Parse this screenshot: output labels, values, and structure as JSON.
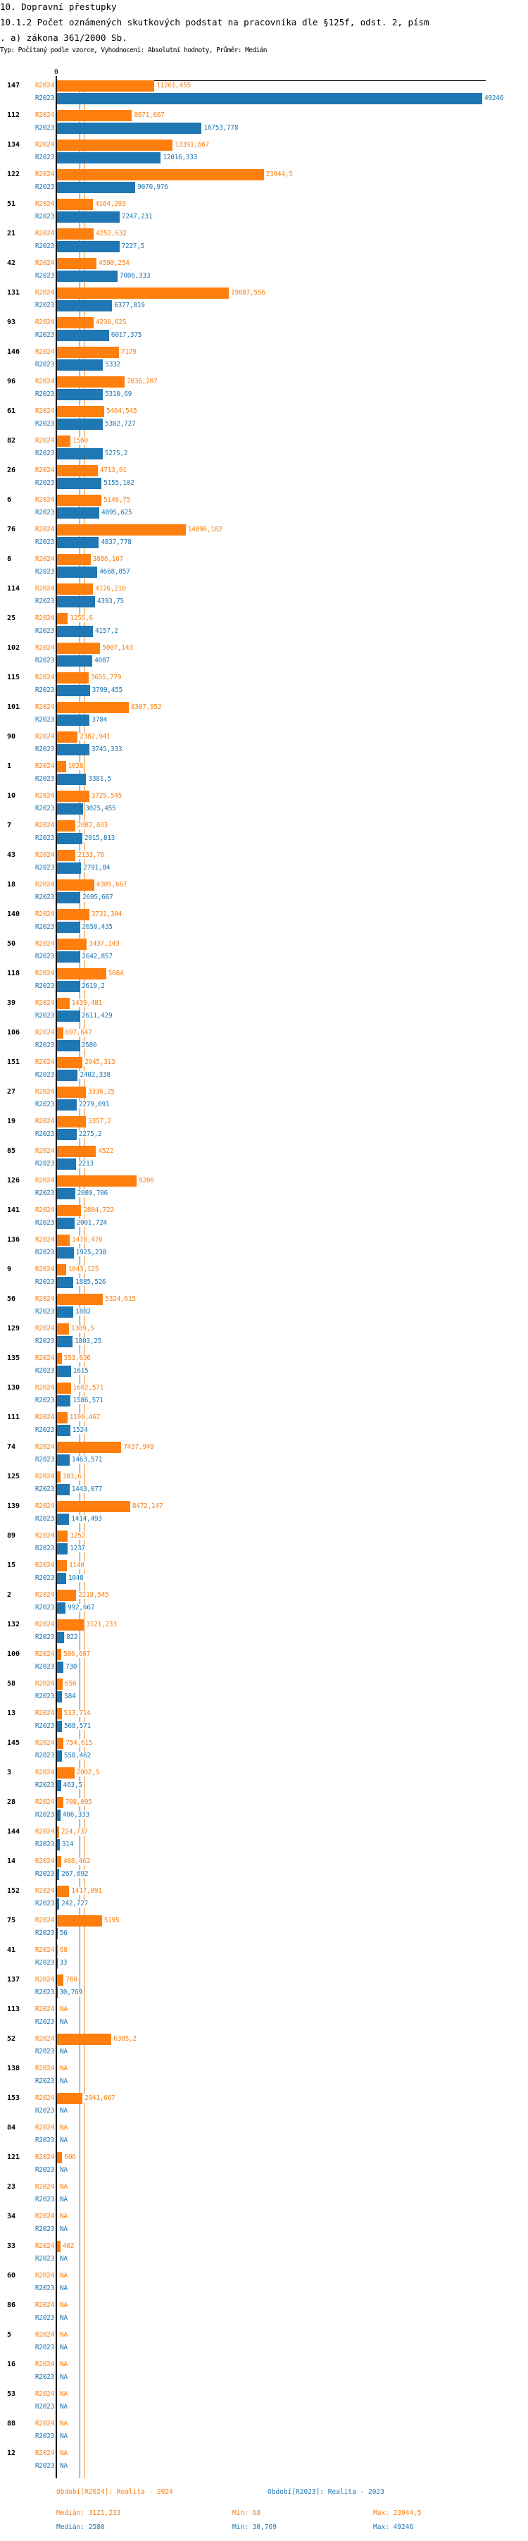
{
  "title_line1": "10. Dopravní přestupky",
  "title_line2": "10.1.2 Počet oznámených skutkových podstat na pracovníka dle §125f, odst. 2, písm",
  "title_line3": ". a) zákona 361/2000 Sb.",
  "subtitle": "Typ: Počítaný podle vzorce, Vyhodnocení: Absolutní hodnoty, Průměr: Medián",
  "colors": {
    "r2024": "#ff7f0e",
    "r2023": "#1f77b4"
  },
  "chart_data": {
    "type": "bar",
    "orientation": "horizontal",
    "axis_zero_label": "0",
    "xlim": [
      0,
      49246
    ],
    "series_labels": [
      "R2024",
      "R2023"
    ],
    "categories": [
      "147",
      "112",
      "134",
      "122",
      "51",
      "21",
      "42",
      "131",
      "93",
      "146",
      "96",
      "61",
      "82",
      "26",
      "6",
      "76",
      "8",
      "114",
      "25",
      "102",
      "115",
      "101",
      "90",
      "1",
      "10",
      "7",
      "43",
      "18",
      "140",
      "50",
      "118",
      "39",
      "106",
      "151",
      "27",
      "19",
      "85",
      "126",
      "141",
      "136",
      "9",
      "56",
      "129",
      "135",
      "130",
      "111",
      "74",
      "125",
      "139",
      "89",
      "15",
      "2",
      "132",
      "100",
      "58",
      "13",
      "145",
      "3",
      "28",
      "144",
      "14",
      "152",
      "75",
      "41",
      "137",
      "113",
      "52",
      "138",
      "153",
      "84",
      "121",
      "23",
      "34",
      "33",
      "60",
      "86",
      "5",
      "16",
      "53",
      "88",
      "12"
    ],
    "series": [
      {
        "name": "R2024",
        "values": [
          "11261,455",
          "8671,667",
          "13391,667",
          "23944,5",
          "4164,203",
          "4252,632",
          "4590,254",
          "19887,556",
          "4230,625",
          "7179",
          "7836,207",
          "5464,545",
          "1560",
          "4713,01",
          "5148,75",
          "14896,182",
          "3886,167",
          "4176,216",
          "1255,6",
          "5007,143",
          "3655,779",
          "8307,952",
          "2382,941",
          "1028",
          "3729,545",
          "2087,033",
          "2133,76",
          "4305,667",
          "3731,304",
          "3437,143",
          "5684",
          "1439,481",
          "697,647",
          "2945,313",
          "3336,25",
          "3357,2",
          "4522",
          "9206",
          "2804,722",
          "1470,476",
          "1043,125",
          "5324,615",
          "1389,5",
          "553,636",
          "1602,571",
          "1199,467",
          "7437,949",
          "383,6",
          "8472,147",
          "1252",
          "1140",
          "2218,545",
          "3121,233",
          "506,667",
          "656",
          "533,714",
          "754,615",
          "2002,5",
          "708,095",
          "224,737",
          "488,462",
          "1417,091",
          "5195",
          "68",
          "760",
          "NA",
          "6305,2",
          "NA",
          "2941,667",
          "NA",
          "606",
          "NA",
          "NA",
          "402",
          "NA",
          "NA",
          "NA",
          "NA",
          "NA",
          "NA",
          "NA"
        ]
      },
      {
        "name": "R2023",
        "values": [
          "49246",
          "16753,778",
          "12016,333",
          "9070,976",
          "7247,231",
          "7227,5",
          "7006,333",
          "6377,819",
          "6017,375",
          "5332",
          "5310,69",
          "5302,727",
          "5275,2",
          "5155,102",
          "4895,625",
          "4837,778",
          "4668,857",
          "4393,75",
          "4157,2",
          "4087",
          "3799,455",
          "3784",
          "3745,333",
          "3381,5",
          "3025,455",
          "2915,813",
          "2791,84",
          "2695,667",
          "2650,435",
          "2642,857",
          "2619,2",
          "2611,429",
          "2580",
          "2402,338",
          "2279,091",
          "2275,2",
          "2213",
          "2089,706",
          "2001,724",
          "1925,238",
          "1885,526",
          "1882",
          "1803,25",
          "1615",
          "1586,571",
          "1524",
          "1463,571",
          "1443,077",
          "1414,493",
          "1237",
          "1048",
          "992,667",
          "822",
          "730",
          "584",
          "568,571",
          "558,462",
          "463,5",
          "406,333",
          "314",
          "267,692",
          "242,727",
          "56",
          "33",
          "30,769",
          "NA",
          "NA",
          "NA",
          "NA",
          "NA",
          "NA",
          "NA",
          "NA",
          "NA",
          "NA",
          "NA",
          "NA",
          "NA",
          "NA",
          "NA",
          "NA"
        ]
      }
    ],
    "median_lines": {
      "R2024": 3121.233,
      "R2023": 2580
    },
    "legend": {
      "r2024_title": "Období[R2024]: Realita - 2024",
      "r2023_title": "Období[R2023]: Realita - 2023",
      "r2024_median": "Medián: 3121,233",
      "r2024_min": "Min: 68",
      "r2024_max": "Max: 23944,5",
      "r2023_median": "Medián: 2580",
      "r2023_min": "Min: 30,769",
      "r2023_max": "Max: 49246",
      "placement": "bottom"
    }
  }
}
